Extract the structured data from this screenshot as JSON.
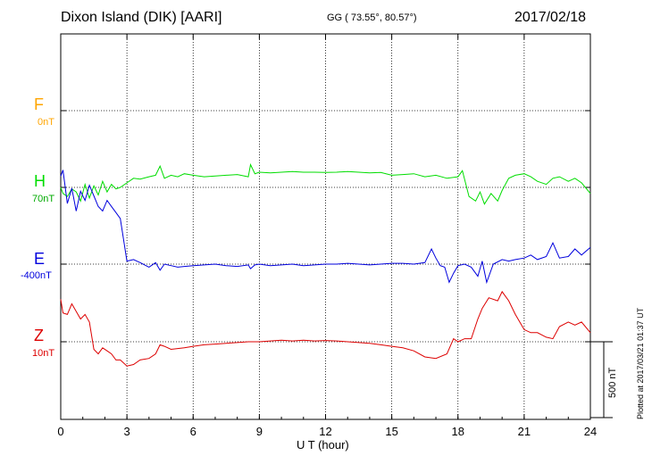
{
  "header": {
    "title": "Dixon Island (DIK)  [AARI]",
    "coords": "GG ( 73.55°,  80.57°)",
    "date": "2017/02/18"
  },
  "footer": {
    "plotted": "Plotted at 2017/03/21 01:37 UT"
  },
  "colors": {
    "F": "#ffa500",
    "H": "#00dd00",
    "E": "#0000dd",
    "Z": "#dd0000"
  },
  "chart_data": {
    "type": "line",
    "xlabel": "U T (hour)",
    "xlim": [
      0,
      24
    ],
    "xticks": [
      0,
      3,
      6,
      9,
      12,
      15,
      18,
      21,
      24
    ],
    "grid": true,
    "scale_bar": "500 nT",
    "series": [
      {
        "name": "F",
        "baseline": "0nT",
        "x": [],
        "values": []
      },
      {
        "name": "H",
        "baseline": "70nT",
        "x": [
          0,
          0.1,
          0.3,
          0.5,
          0.7,
          0.9,
          1.1,
          1.3,
          1.5,
          1.7,
          1.9,
          2.1,
          2.3,
          2.5,
          2.7,
          3.0,
          3.3,
          3.6,
          4.0,
          4.3,
          4.5,
          4.7,
          5.0,
          5.3,
          5.6,
          6.0,
          6.5,
          7.0,
          7.5,
          8.0,
          8.5,
          8.6,
          8.8,
          9.0,
          9.5,
          10.0,
          10.5,
          11.0,
          11.5,
          12.0,
          12.5,
          13.0,
          13.5,
          14.0,
          14.5,
          15.0,
          15.5,
          16.0,
          16.5,
          17.0,
          17.5,
          18.0,
          18.2,
          18.5,
          18.8,
          19.0,
          19.2,
          19.5,
          19.8,
          20.0,
          20.3,
          20.6,
          21.0,
          21.3,
          21.6,
          22.0,
          22.3,
          22.6,
          23.0,
          23.3,
          23.6,
          24.0
        ],
        "values": [
          0,
          -40,
          -60,
          -10,
          -30,
          -90,
          20,
          -70,
          10,
          -50,
          40,
          -30,
          20,
          -10,
          0,
          30,
          60,
          55,
          70,
          80,
          140,
          60,
          80,
          70,
          90,
          80,
          70,
          75,
          80,
          85,
          70,
          150,
          90,
          100,
          95,
          100,
          105,
          100,
          100,
          98,
          100,
          105,
          100,
          95,
          98,
          80,
          85,
          90,
          70,
          80,
          60,
          70,
          110,
          -60,
          -90,
          -30,
          -110,
          -40,
          -90,
          -20,
          60,
          80,
          90,
          70,
          40,
          20,
          60,
          70,
          40,
          60,
          30,
          -40
        ]
      },
      {
        "name": "E",
        "baseline": "-400nT",
        "x": [
          0,
          0.1,
          0.3,
          0.5,
          0.7,
          0.9,
          1.1,
          1.3,
          1.5,
          1.7,
          1.9,
          2.1,
          2.3,
          2.5,
          2.7,
          3.0,
          3.3,
          3.6,
          4.0,
          4.3,
          4.5,
          4.7,
          5.0,
          5.3,
          5.6,
          6.0,
          6.5,
          7.0,
          7.5,
          8.0,
          8.5,
          8.6,
          8.8,
          9.0,
          9.5,
          10.0,
          10.5,
          11.0,
          11.5,
          12.0,
          12.5,
          13.0,
          13.5,
          14.0,
          14.5,
          15.0,
          15.5,
          16.0,
          16.5,
          16.8,
          17.0,
          17.2,
          17.4,
          17.6,
          17.8,
          18.0,
          18.3,
          18.6,
          18.9,
          19.1,
          19.3,
          19.6,
          20.0,
          20.3,
          20.6,
          21.0,
          21.3,
          21.6,
          22.0,
          22.3,
          22.6,
          23.0,
          23.3,
          23.6,
          24.0
        ],
        "values": [
          580,
          620,
          400,
          500,
          350,
          480,
          420,
          520,
          450,
          380,
          350,
          420,
          380,
          340,
          300,
          20,
          30,
          10,
          -20,
          10,
          -40,
          0,
          -10,
          -20,
          -15,
          -10,
          -5,
          0,
          -10,
          -15,
          -5,
          -30,
          -5,
          0,
          -10,
          -5,
          0,
          -10,
          -5,
          0,
          0,
          5,
          0,
          -5,
          0,
          5,
          5,
          0,
          10,
          100,
          40,
          -10,
          -20,
          -120,
          -60,
          -10,
          0,
          -20,
          -80,
          20,
          -120,
          0,
          30,
          20,
          30,
          40,
          60,
          30,
          50,
          140,
          40,
          50,
          100,
          60,
          110
        ]
      },
      {
        "name": "Z",
        "baseline": "10nT",
        "x": [
          0,
          0.1,
          0.3,
          0.5,
          0.7,
          0.9,
          1.1,
          1.3,
          1.5,
          1.7,
          1.9,
          2.1,
          2.3,
          2.5,
          2.7,
          3.0,
          3.3,
          3.6,
          4.0,
          4.3,
          4.5,
          4.7,
          5.0,
          5.3,
          5.6,
          6.0,
          6.5,
          7.0,
          7.5,
          8.0,
          8.5,
          9.0,
          9.5,
          10.0,
          10.5,
          11.0,
          11.5,
          12.0,
          12.5,
          13.0,
          13.5,
          14.0,
          14.5,
          15.0,
          15.5,
          16.0,
          16.5,
          17.0,
          17.5,
          17.8,
          18.0,
          18.3,
          18.6,
          18.9,
          19.1,
          19.4,
          19.8,
          20.0,
          20.3,
          20.6,
          21.0,
          21.3,
          21.6,
          22.0,
          22.3,
          22.6,
          23.0,
          23.3,
          23.6,
          24.0
        ],
        "values": [
          280,
          190,
          180,
          250,
          200,
          150,
          180,
          130,
          -50,
          -80,
          -40,
          -60,
          -80,
          -120,
          -120,
          -160,
          -150,
          -120,
          -110,
          -80,
          -20,
          -30,
          -50,
          -45,
          -40,
          -30,
          -20,
          -15,
          -10,
          -5,
          0,
          0,
          5,
          10,
          5,
          10,
          5,
          8,
          5,
          0,
          -5,
          -10,
          -20,
          -30,
          -40,
          -60,
          -100,
          -110,
          -80,
          20,
          0,
          20,
          20,
          150,
          220,
          290,
          270,
          330,
          270,
          180,
          80,
          60,
          60,
          30,
          20,
          100,
          130,
          110,
          130,
          60
        ]
      }
    ]
  }
}
